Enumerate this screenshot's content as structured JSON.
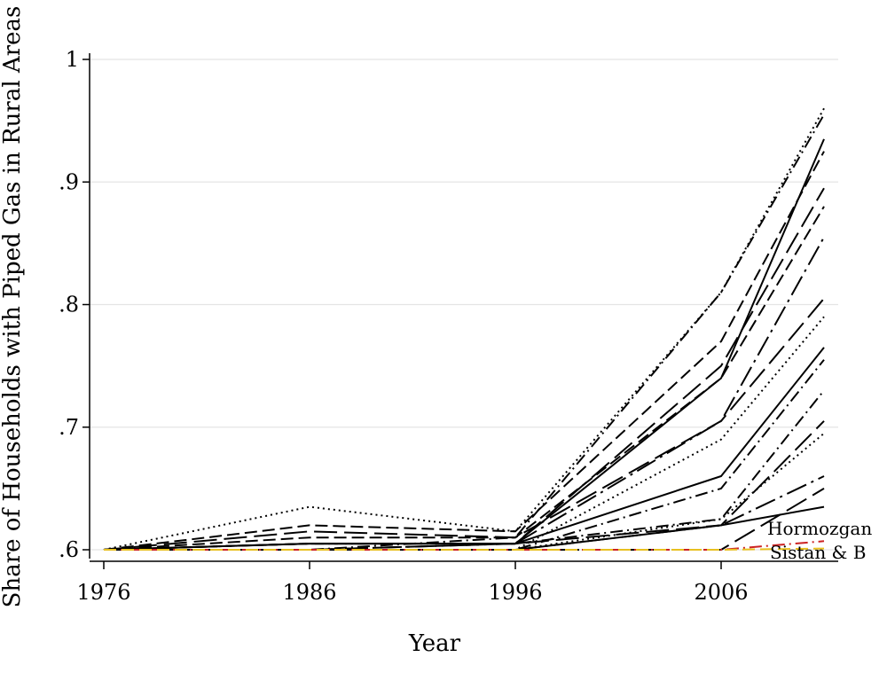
{
  "chart_data": {
    "type": "line",
    "xlabel": "Year",
    "ylabel": "Share of Households with Piped Gas in Rural Areas",
    "x": [
      1976,
      1986,
      1996,
      2006,
      2011
    ],
    "xticks": [
      "1976",
      "1986",
      "1996",
      "2006"
    ],
    "yticks": [
      ".6",
      ".7",
      ".8",
      ".9",
      "1"
    ],
    "ylim": [
      0.6,
      1.0
    ],
    "grid": true,
    "annotations": [
      "Hormozgan",
      "Sistan & B"
    ],
    "series": [
      {
        "values": [
          0.6,
          0.635,
          0.615,
          0.81,
          0.96
        ],
        "style": "dot",
        "color": "#000000"
      },
      {
        "values": [
          0.6,
          0.6,
          0.61,
          0.81,
          0.955
        ],
        "style": "dashdot",
        "color": "#000000"
      },
      {
        "values": [
          0.6,
          0.605,
          0.605,
          0.74,
          0.935
        ],
        "style": "solid",
        "color": "#000000"
      },
      {
        "values": [
          0.6,
          0.62,
          0.615,
          0.77,
          0.925
        ],
        "style": "dash",
        "color": "#000000"
      },
      {
        "values": [
          0.6,
          0.605,
          0.605,
          0.75,
          0.895
        ],
        "style": "longdash",
        "color": "#000000"
      },
      {
        "values": [
          0.6,
          0.61,
          0.61,
          0.74,
          0.88
        ],
        "style": "dash",
        "color": "#000000"
      },
      {
        "values": [
          0.6,
          0.6,
          0.605,
          0.705,
          0.855
        ],
        "style": "longdashdot",
        "color": "#000000"
      },
      {
        "values": [
          0.6,
          0.615,
          0.61,
          0.705,
          0.805
        ],
        "style": "longdash",
        "color": "#000000"
      },
      {
        "values": [
          0.6,
          0.6,
          0.6,
          0.69,
          0.79
        ],
        "style": "dot",
        "color": "#000000"
      },
      {
        "values": [
          0.6,
          0.605,
          0.605,
          0.66,
          0.765
        ],
        "style": "solid",
        "color": "#000000"
      },
      {
        "values": [
          0.6,
          0.6,
          0.6,
          0.65,
          0.755
        ],
        "style": "dashdot",
        "color": "#000000"
      },
      {
        "values": [
          0.6,
          0.605,
          0.605,
          0.625,
          0.73
        ],
        "style": "dashdot",
        "color": "#000000"
      },
      {
        "values": [
          0.6,
          0.6,
          0.605,
          0.62,
          0.705
        ],
        "style": "longdash",
        "color": "#000000"
      },
      {
        "values": [
          0.6,
          0.6,
          0.6,
          0.625,
          0.695
        ],
        "style": "dot",
        "color": "#000000"
      },
      {
        "values": [
          0.6,
          0.6,
          0.6,
          0.62,
          0.66
        ],
        "style": "longdashdot",
        "color": "#000000"
      },
      {
        "values": [
          0.6,
          0.6,
          0.6,
          0.6,
          0.65
        ],
        "style": "longdash",
        "color": "#000000"
      },
      {
        "values": [
          0.6,
          0.6,
          0.6,
          0.62,
          0.635
        ],
        "style": "solid",
        "color": "#000000"
      },
      {
        "values": [
          0.6,
          0.6,
          0.6,
          0.6,
          0.607
        ],
        "style": "dashdot",
        "color": "#cc2222"
      },
      {
        "values": [
          0.6,
          0.6,
          0.6,
          0.6,
          0.601
        ],
        "style": "dash",
        "color": "#e8c020"
      }
    ]
  }
}
